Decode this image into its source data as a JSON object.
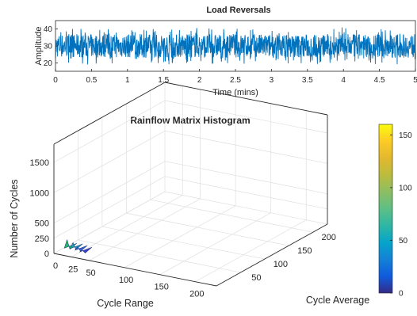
{
  "chart_data": [
    {
      "type": "line",
      "title": "Load Reversals",
      "xlabel": "Time (mins)",
      "ylabel": "Amplitude",
      "xlim": [
        0,
        5
      ],
      "ylim": [
        15,
        45
      ],
      "xticks": [
        "0",
        "0.5",
        "1",
        "1.5",
        "2",
        "2.5",
        "3",
        "3.5",
        "4",
        "4.5",
        "5"
      ],
      "yticks": [
        "20",
        "30",
        "40"
      ],
      "series": [
        {
          "color": "#0072BD",
          "mean": 30,
          "range": [
            19,
            41
          ],
          "band": [
            23,
            37
          ]
        }
      ]
    },
    {
      "type": "heatmap",
      "subtype": "3d-histogram",
      "title": "Rainflow Matrix Histogram",
      "xlabel": "Cycle Range",
      "ylabel": "Cycle Average",
      "zlabel": "Number of Cycles",
      "xticks": [
        "0",
        "25",
        "50",
        "100",
        "150",
        "200"
      ],
      "yticks": [
        "50",
        "100",
        "150",
        "200"
      ],
      "zticks": [
        "0",
        "250",
        "500",
        "1000",
        "1500"
      ],
      "xlim": [
        0,
        230
      ],
      "ylim": [
        0,
        230
      ],
      "zlim": [
        0,
        1800
      ],
      "colorbar": {
        "colormap": "parula",
        "ticks": [
          "0",
          "50",
          "100",
          "150"
        ],
        "range": [
          0,
          160
        ]
      },
      "bars": [
        {
          "range": 5,
          "average": 20,
          "count": 150,
          "color": "#22b866"
        },
        {
          "range": 12,
          "average": 22,
          "count": 110,
          "color": "#1a9fb0"
        },
        {
          "range": 20,
          "average": 20,
          "count": 70,
          "color": "#2f5fd1"
        },
        {
          "range": 28,
          "average": 18,
          "count": 35,
          "color": "#3a3fc4"
        }
      ],
      "grid": true
    }
  ]
}
